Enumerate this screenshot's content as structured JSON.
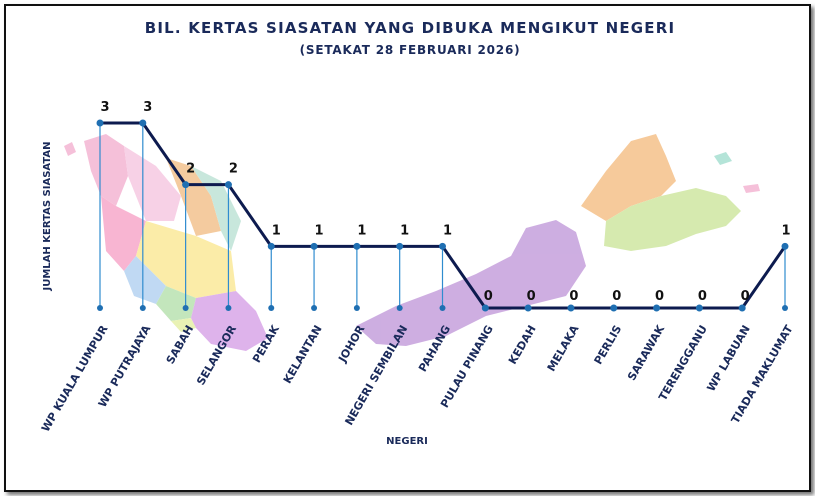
{
  "chart_data": {
    "type": "line",
    "title": "BIL. KERTAS SIASATAN YANG DIBUKA MENGIKUT NEGERI",
    "subtitle": "(SETAKAT 28 FEBRUARI 2026)",
    "xlabel": "NEGERI",
    "ylabel": "JUMLAH KERTAS SIASATAN",
    "ylim": [
      0,
      3
    ],
    "categories": [
      "WP KUALA LUMPUR",
      "WP PUTRAJAYA",
      "SABAH",
      "SELANGOR",
      "PERAK",
      "KELANTAN",
      "JOHOR",
      "NEGERI SEMBILAN",
      "PAHANG",
      "PULAU PINANG",
      "KEDAH",
      "MELAKA",
      "PERLIS",
      "SARAWAK",
      "TERENGGANU",
      "WP LABUAN",
      "TIADA MAKLUMAT"
    ],
    "values": [
      3,
      3,
      2,
      2,
      1,
      1,
      1,
      1,
      1,
      0,
      0,
      0,
      0,
      0,
      0,
      0,
      1
    ],
    "colors": {
      "line": "#0d1b4f",
      "marker": "#1f6fb2",
      "drop": "#2f8ccf",
      "text": "#1a2a5a"
    }
  }
}
